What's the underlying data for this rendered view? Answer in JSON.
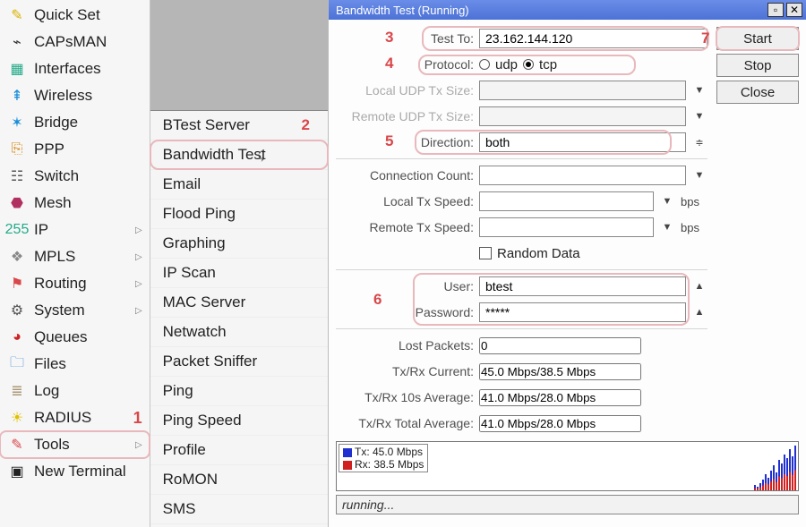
{
  "menu1": {
    "items": [
      {
        "name": "quick-set",
        "label": "Quick Set",
        "glyph": "✎",
        "color": "#d9b200",
        "sub": false
      },
      {
        "name": "capsman",
        "label": "CAPsMAN",
        "glyph": "⌁",
        "color": "#333",
        "sub": false
      },
      {
        "name": "interfaces",
        "label": "Interfaces",
        "glyph": "▦",
        "color": "#2a8",
        "sub": false
      },
      {
        "name": "wireless",
        "label": "Wireless",
        "glyph": "⇞",
        "color": "#1a8dd8",
        "sub": false
      },
      {
        "name": "bridge",
        "label": "Bridge",
        "glyph": "✶",
        "color": "#1a8dd8",
        "sub": false
      },
      {
        "name": "ppp",
        "label": "PPP",
        "glyph": "⎘",
        "color": "#d88a1a",
        "sub": false
      },
      {
        "name": "switch",
        "label": "Switch",
        "glyph": "☷",
        "color": "#555",
        "sub": false
      },
      {
        "name": "mesh",
        "label": "Mesh",
        "glyph": "⬣",
        "color": "#b03060",
        "sub": false
      },
      {
        "name": "ip",
        "label": "IP",
        "glyph": "255",
        "color": "#2a8",
        "sub": true
      },
      {
        "name": "mpls",
        "label": "MPLS",
        "glyph": "❖",
        "color": "#888",
        "sub": true
      },
      {
        "name": "routing",
        "label": "Routing",
        "glyph": "⚑",
        "color": "#d9474a",
        "sub": true
      },
      {
        "name": "system",
        "label": "System",
        "glyph": "⚙",
        "color": "#555",
        "sub": true
      },
      {
        "name": "queues",
        "label": "Queues",
        "glyph": "◕",
        "color": "#c22",
        "sub": false
      },
      {
        "name": "files",
        "label": "Files",
        "glyph": "🗀",
        "color": "#2b7fd0",
        "sub": false
      },
      {
        "name": "log",
        "label": "Log",
        "glyph": "≣",
        "color": "#a97",
        "sub": false
      },
      {
        "name": "radius",
        "label": "RADIUS",
        "glyph": "☀",
        "color": "#e0c000",
        "sub": false
      },
      {
        "name": "tools",
        "label": "Tools",
        "glyph": "✎",
        "color": "#d9474a",
        "sub": true,
        "highlight": true
      },
      {
        "name": "new-terminal",
        "label": "New Terminal",
        "glyph": "▣",
        "color": "#222",
        "sub": false
      }
    ]
  },
  "menu2": {
    "items": [
      {
        "label": "BTest Server",
        "num": "2"
      },
      {
        "label": "Bandwidth Test",
        "highlight": true
      },
      {
        "label": "Email"
      },
      {
        "label": "Flood Ping"
      },
      {
        "label": "Graphing"
      },
      {
        "label": "IP Scan"
      },
      {
        "label": "MAC Server"
      },
      {
        "label": "Netwatch"
      },
      {
        "label": "Packet Sniffer"
      },
      {
        "label": "Ping"
      },
      {
        "label": "Ping Speed"
      },
      {
        "label": "Profile"
      },
      {
        "label": "RoMON"
      },
      {
        "label": "SMS"
      }
    ]
  },
  "dialog": {
    "title": "Bandwidth Test (Running)",
    "buttons": {
      "start": "Start",
      "stop": "Stop",
      "close": "Close"
    },
    "annotations": {
      "n1": "1",
      "n2": "2",
      "n3": "3",
      "n4": "4",
      "n5": "5",
      "n6": "6",
      "n7": "7"
    },
    "labels": {
      "test_to": "Test To:",
      "protocol": "Protocol:",
      "local_udp": "Local UDP Tx Size:",
      "remote_udp": "Remote UDP Tx Size:",
      "direction": "Direction:",
      "conn_count": "Connection Count:",
      "local_tx": "Local Tx Speed:",
      "remote_tx": "Remote Tx Speed:",
      "random": "Random Data",
      "user": "User:",
      "password": "Password:",
      "lost": "Lost Packets:",
      "current": "Tx/Rx Current:",
      "avg10": "Tx/Rx 10s Average:",
      "avgtot": "Tx/Rx Total Average:",
      "udp": "udp",
      "tcp": "tcp",
      "bps": "bps"
    },
    "values": {
      "test_to": "23.162.144.120",
      "protocol": "tcp",
      "direction": "both",
      "user": "btest",
      "password": "*****",
      "lost": "0",
      "current": "45.0 Mbps/38.5 Mbps",
      "avg10": "41.0 Mbps/28.0 Mbps",
      "avgtot": "41.0 Mbps/28.0 Mbps"
    },
    "chart": {
      "tx_label": "Tx:  45.0 Mbps",
      "rx_label": "Rx:  38.5 Mbps",
      "tx_color": "#2030d0",
      "rx_color": "#d02020",
      "bars": [
        6,
        4,
        8,
        12,
        18,
        14,
        22,
        28,
        20,
        34,
        30,
        40,
        36,
        46,
        38,
        50
      ]
    },
    "status": "running..."
  }
}
